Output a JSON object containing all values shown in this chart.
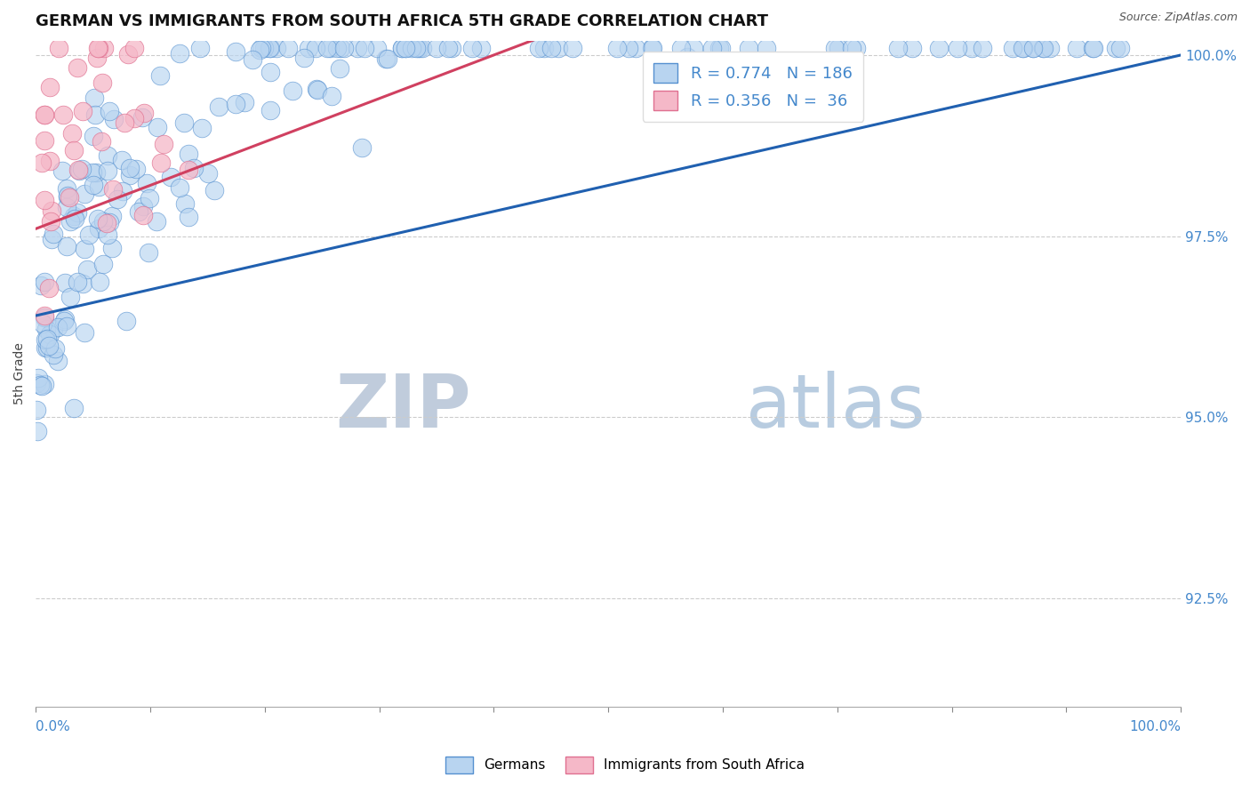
{
  "title": "GERMAN VS IMMIGRANTS FROM SOUTH AFRICA 5TH GRADE CORRELATION CHART",
  "source_text": "Source: ZipAtlas.com",
  "ylabel": "5th Grade",
  "xlim": [
    0.0,
    1.0
  ],
  "ylim": [
    0.91,
    1.002
  ],
  "ytick_labels": [
    "92.5%",
    "95.0%",
    "97.5%",
    "100.0%"
  ],
  "ytick_values": [
    0.925,
    0.95,
    0.975,
    1.0
  ],
  "blue_scatter_color": "#b8d4f0",
  "pink_scatter_color": "#f5b8c8",
  "blue_edge_color": "#5590d0",
  "pink_edge_color": "#e07090",
  "blue_line_color": "#2060b0",
  "pink_line_color": "#d04060",
  "watermark_zip": "ZIP",
  "watermark_atlas": "atlas",
  "watermark_color_zip": "#c8d4e4",
  "watermark_color_atlas": "#c0cfe8",
  "legend_label_german": "Germans",
  "legend_label_sa": "Immigrants from South Africa",
  "R_blue": 0.774,
  "N_blue": 186,
  "R_pink": 0.356,
  "N_pink": 36,
  "background_color": "#ffffff",
  "grid_color": "#cccccc",
  "title_fontsize": 13,
  "axis_label_fontsize": 10,
  "legend_fontsize": 13,
  "ytick_fontsize": 11,
  "xtick_label_fontsize": 11,
  "source_fontsize": 9,
  "ylabel_color": "#444444",
  "tick_label_color": "#4488cc"
}
